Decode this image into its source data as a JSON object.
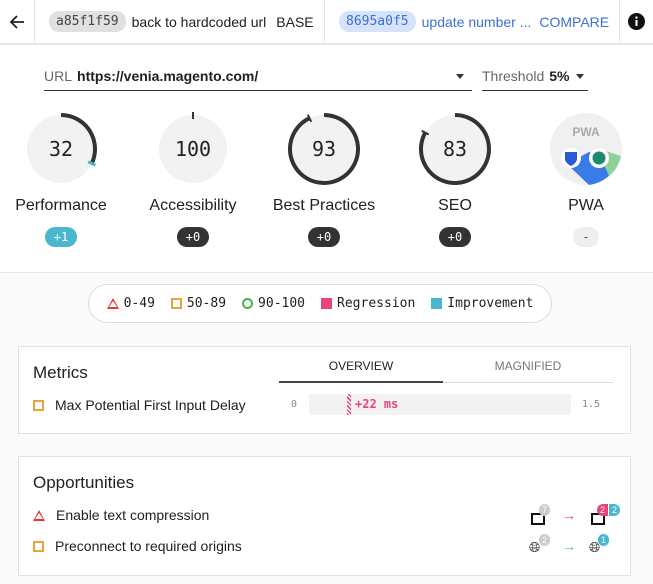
{
  "header": {
    "base": {
      "hash": "a85f1f59",
      "message": "back to hardcoded url",
      "label": "BASE"
    },
    "compare": {
      "hash": "8695a0f5",
      "message": "update number ...",
      "label": "COMPARE"
    }
  },
  "url": {
    "label": "URL",
    "value": "https://venia.magento.com/"
  },
  "threshold": {
    "label": "Threshold",
    "value": "5%"
  },
  "gauges": [
    {
      "name": "Performance",
      "score": 32,
      "diff": "+1",
      "status": "improvement"
    },
    {
      "name": "Accessibility",
      "score": 100,
      "diff": "+0",
      "status": "neutral"
    },
    {
      "name": "Best Practices",
      "score": 93,
      "diff": "+0",
      "status": "neutral"
    },
    {
      "name": "SEO",
      "score": 83,
      "diff": "+0",
      "status": "neutral"
    },
    {
      "name": "PWA",
      "score": null,
      "diff": "-",
      "status": "none",
      "logo_text": "PWA"
    }
  ],
  "legend": [
    "0-49",
    "50-89",
    "90-100",
    "Regression",
    "Improvement"
  ],
  "colors": {
    "fail": "#e53935",
    "average": "#e8a33a",
    "pass": "#4caf50",
    "regression": "#e8437a",
    "improvement": "#4bb7cf"
  },
  "metrics": {
    "title": "Metrics",
    "tabs": [
      "OVERVIEW",
      "MAGNIFIED"
    ],
    "active_tab": "OVERVIEW",
    "items": [
      {
        "name": "Max Potential First Input Delay",
        "min": "0",
        "max": "1.5",
        "delta": "+22 ms"
      }
    ]
  },
  "opportunities": {
    "title": "Opportunities",
    "items": [
      {
        "name": "Enable text compression",
        "severity": "fail",
        "icon": "document-icon",
        "base_count": "7",
        "compare_regressed": "2",
        "compare_improved": "2",
        "trend": "regression"
      },
      {
        "name": "Preconnect to required origins",
        "severity": "average",
        "icon": "globe-icon",
        "base_count": "2",
        "compare_improved": "1",
        "trend": "improvement"
      }
    ]
  }
}
